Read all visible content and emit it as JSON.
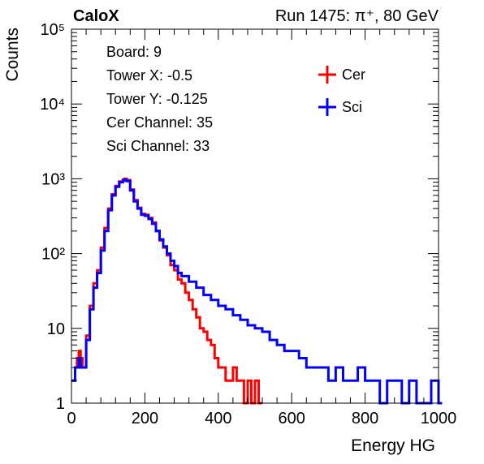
{
  "header": {
    "experiment": "CaloX",
    "run_info": "Run 1475:   π⁺, 80 GeV"
  },
  "info_box": {
    "lines": [
      "Board: 9",
      "Tower X: -0.5",
      "Tower Y: -0.125",
      "Cer Channel: 35",
      "Sci Channel: 33"
    ]
  },
  "chart_data": {
    "type": "line",
    "title": "",
    "xlabel": "Energy HG",
    "ylabel": "Counts",
    "xlim": [
      0,
      1000
    ],
    "ylim": [
      1,
      100000
    ],
    "yscale": "log",
    "grid": false,
    "legend_position": "top-right",
    "x_ticks": [
      0,
      200,
      400,
      600,
      800,
      1000
    ],
    "y_ticks": [
      1,
      10,
      100,
      1000,
      10000,
      100000
    ],
    "y_tick_labels": [
      "1",
      "10",
      "10²",
      "10³",
      "10⁴",
      "10⁵"
    ],
    "series": [
      {
        "name": "Cer",
        "color": "#ff0000",
        "x": [
          0,
          10,
          15,
          20,
          25,
          30,
          40,
          50,
          60,
          70,
          80,
          90,
          100,
          110,
          120,
          130,
          140,
          145,
          150,
          160,
          170,
          180,
          190,
          200,
          210,
          220,
          230,
          240,
          250,
          260,
          270,
          280,
          290,
          300,
          310,
          320,
          330,
          340,
          350,
          360,
          370,
          380,
          390,
          400,
          410,
          420,
          430,
          440,
          450,
          460,
          470,
          480,
          490,
          500,
          510
        ],
        "y": [
          2,
          3,
          4,
          5,
          4,
          3,
          8,
          20,
          40,
          60,
          120,
          220,
          400,
          620,
          800,
          920,
          980,
          1000,
          960,
          720,
          520,
          410,
          340,
          330,
          300,
          260,
          200,
          150,
          120,
          95,
          70,
          60,
          45,
          40,
          30,
          24,
          18,
          14,
          10,
          9,
          7,
          6,
          4,
          3,
          3,
          2,
          2,
          3,
          2,
          2,
          1,
          2,
          1,
          2,
          1
        ]
      },
      {
        "name": "Sci",
        "color": "#0000ff",
        "x": [
          0,
          10,
          15,
          20,
          25,
          30,
          40,
          50,
          60,
          70,
          80,
          90,
          100,
          110,
          120,
          130,
          140,
          145,
          150,
          160,
          170,
          180,
          190,
          200,
          210,
          220,
          230,
          240,
          250,
          260,
          270,
          280,
          290,
          300,
          320,
          340,
          360,
          380,
          400,
          420,
          440,
          460,
          480,
          500,
          520,
          540,
          560,
          580,
          600,
          620,
          640,
          660,
          680,
          700,
          720,
          740,
          760,
          780,
          800,
          820,
          840,
          860,
          880,
          900,
          920,
          940,
          960,
          980,
          1000
        ],
        "y": [
          2,
          3,
          3,
          4,
          3,
          3,
          7,
          18,
          35,
          55,
          110,
          200,
          380,
          600,
          780,
          900,
          950,
          970,
          930,
          700,
          500,
          400,
          330,
          320,
          290,
          250,
          200,
          155,
          125,
          100,
          80,
          68,
          55,
          50,
          42,
          35,
          28,
          24,
          20,
          18,
          15,
          13,
          11,
          10,
          9,
          7,
          6,
          5,
          5,
          4,
          3,
          3,
          3,
          2,
          3,
          2,
          2,
          3,
          2,
          2,
          1,
          2,
          2,
          1,
          2,
          1,
          1,
          2,
          1
        ]
      }
    ]
  }
}
